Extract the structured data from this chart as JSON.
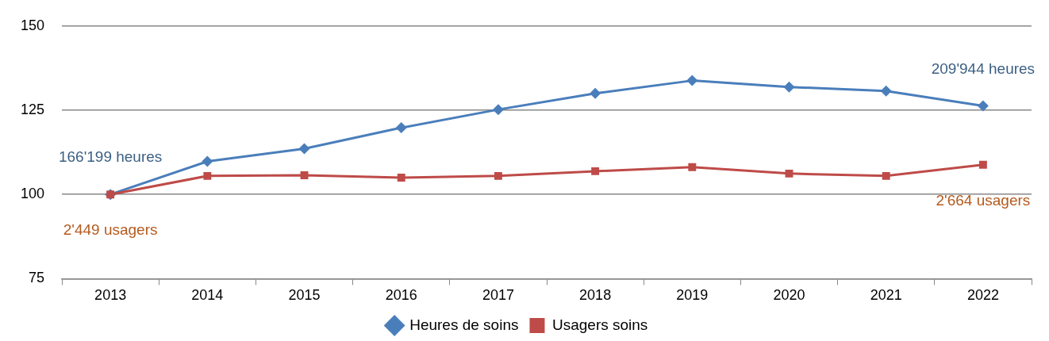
{
  "chart_data": {
    "type": "line",
    "categories": [
      "2013",
      "2014",
      "2015",
      "2016",
      "2017",
      "2018",
      "2019",
      "2020",
      "2021",
      "2022"
    ],
    "series": [
      {
        "name": "Heures de soins",
        "color": "#4a7ebb",
        "marker": "diamond",
        "values": [
          100,
          109.8,
          113.6,
          119.8,
          125.2,
          130,
          133.8,
          131.9,
          130.7,
          126.3
        ]
      },
      {
        "name": "Usagers soins",
        "color": "#be4b48",
        "marker": "square",
        "values": [
          100,
          105.5,
          105.7,
          105,
          105.5,
          106.9,
          108.1,
          106.2,
          105.5,
          108.8
        ]
      }
    ],
    "ylim": [
      75,
      150
    ],
    "yticks": [
      75,
      100,
      125,
      150
    ],
    "grid": "y",
    "legend": "bottom",
    "annotations": [
      {
        "text": "166'199 heures",
        "x": "2013",
        "y": 100
      },
      {
        "text": "2'449 usagers",
        "x": "2013",
        "y": 100
      },
      {
        "text": "209'944 heures",
        "x": "2022",
        "y": 126.3
      },
      {
        "text": "2'664 usagers",
        "x": "2022",
        "y": 108.8
      }
    ]
  }
}
